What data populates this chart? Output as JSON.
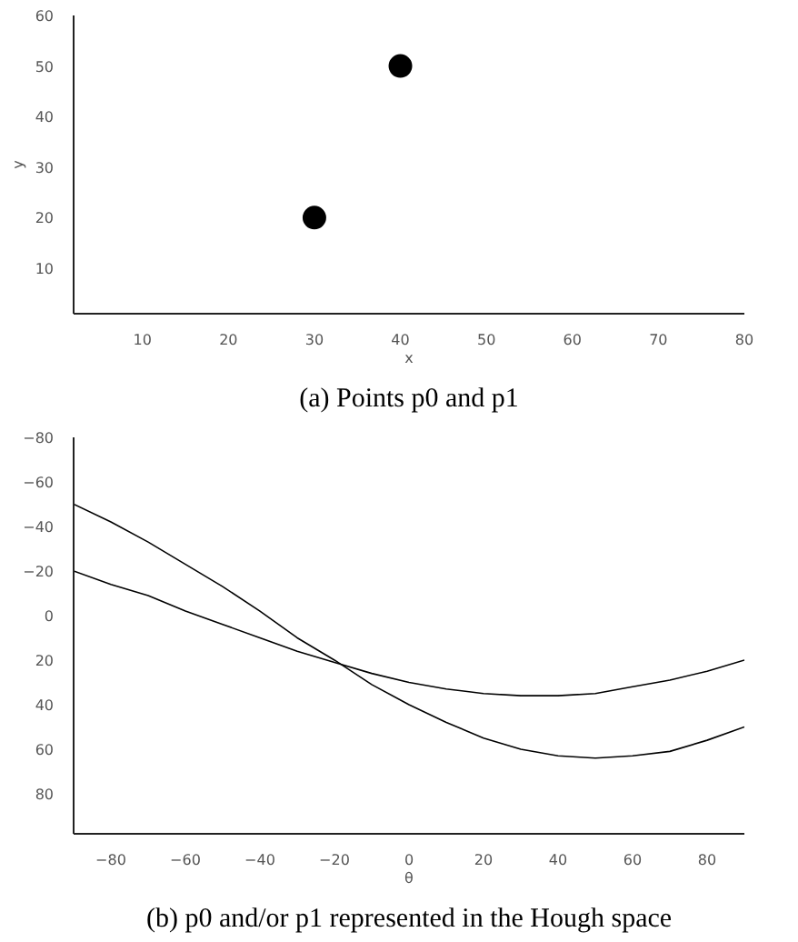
{
  "chart_data": [
    {
      "type": "scatter",
      "x": [
        30,
        40
      ],
      "values": [
        20,
        50
      ],
      "color": "#000000",
      "marker": "circle",
      "xlabel": "x",
      "ylabel": "y",
      "xlim": [
        2,
        80
      ],
      "ylim": [
        1,
        60
      ],
      "xticks": [
        10,
        20,
        30,
        40,
        50,
        60,
        70,
        80
      ],
      "yticks": [
        10,
        20,
        30,
        40,
        50,
        60
      ],
      "grid": false,
      "annotations": [
        "(a) Points p0 and p1"
      ]
    },
    {
      "type": "line",
      "x": [
        -90,
        -80,
        -70,
        -60,
        -50,
        -40,
        -30,
        -20,
        -10,
        0,
        10,
        20,
        30,
        40,
        50,
        60,
        70,
        80,
        90
      ],
      "series": [
        {
          "color": "#000000",
          "values": [
            -20,
            -14,
            -9,
            -2,
            4,
            10,
            16,
            21,
            26,
            30,
            33,
            35,
            36,
            36,
            35,
            32,
            29,
            25,
            20
          ]
        },
        {
          "color": "#000000",
          "values": [
            -50,
            -42,
            -33,
            -23,
            -13,
            -2,
            10,
            20,
            31,
            40,
            48,
            55,
            60,
            63,
            64,
            63,
            61,
            56,
            50
          ]
        }
      ],
      "xlabel": "θ",
      "xlim": [
        -90,
        90
      ],
      "ylim": [
        98,
        -80
      ],
      "xticks": [
        -80,
        -60,
        -40,
        -20,
        0,
        20,
        40,
        60,
        80
      ],
      "yticks": [
        -80,
        -60,
        -40,
        -20,
        0,
        20,
        40,
        60,
        80
      ],
      "grid": false,
      "marker": "none",
      "line_style": "solid",
      "annotations": [
        "(b) p0 and/or p1 represented in the Hough space"
      ]
    }
  ]
}
